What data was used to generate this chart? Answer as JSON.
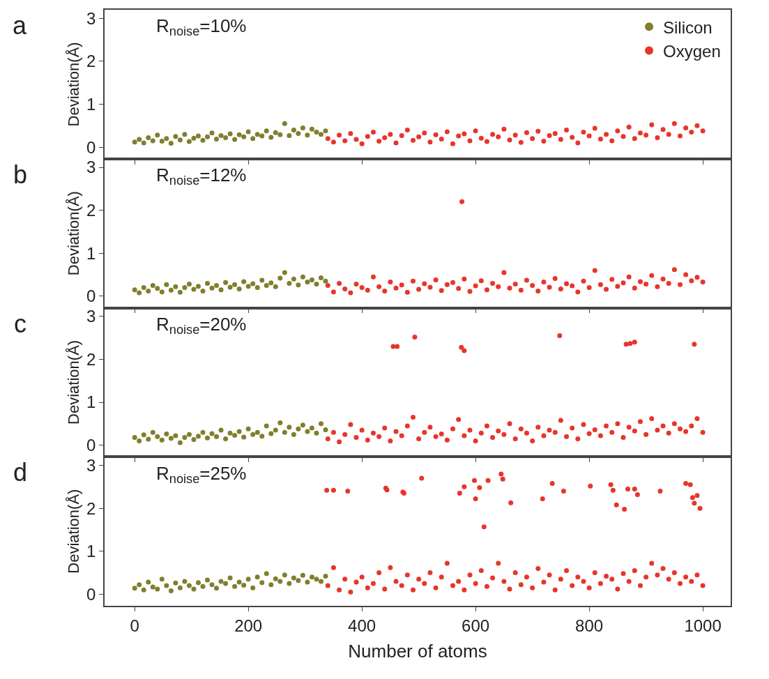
{
  "chart_data": [
    {
      "type": "scatter",
      "annotations": [
        "a",
        "R$_{noise}$=10%"
      ],
      "ylabel": "Deviation(Å)",
      "xlim": [
        -53,
        1049
      ],
      "xticks": [
        0,
        200,
        400,
        600,
        800,
        1000
      ],
      "ylim": [
        -0.27,
        3.2
      ],
      "yticks": [
        0,
        1,
        2,
        3
      ],
      "tick_labels": "y",
      "grid": false,
      "legend": "top right",
      "marker": "circle",
      "series": [
        {
          "name": "Silicon",
          "color": "#7f7f2e",
          "x": [
            0,
            8,
            16,
            24,
            32,
            40,
            48,
            56,
            64,
            72,
            80,
            88,
            96,
            104,
            112,
            120,
            128,
            136,
            144,
            152,
            160,
            168,
            176,
            184,
            192,
            200,
            208,
            216,
            224,
            232,
            240,
            248,
            256,
            264,
            272,
            280,
            288,
            296,
            304,
            312,
            320,
            328,
            336
          ],
          "values": [
            0.12,
            0.18,
            0.1,
            0.22,
            0.15,
            0.28,
            0.14,
            0.2,
            0.09,
            0.25,
            0.17,
            0.3,
            0.13,
            0.21,
            0.26,
            0.16,
            0.24,
            0.33,
            0.19,
            0.27,
            0.22,
            0.31,
            0.18,
            0.29,
            0.24,
            0.36,
            0.2,
            0.3,
            0.26,
            0.38,
            0.23,
            0.34,
            0.29,
            0.55,
            0.27,
            0.4,
            0.32,
            0.45,
            0.28,
            0.42,
            0.35,
            0.3,
            0.38
          ]
        },
        {
          "name": "Oxygen",
          "color": "#e8352b",
          "x": [
            340,
            350,
            360,
            370,
            380,
            390,
            400,
            410,
            420,
            430,
            440,
            450,
            460,
            470,
            480,
            490,
            500,
            510,
            520,
            530,
            540,
            550,
            560,
            570,
            580,
            590,
            600,
            610,
            620,
            630,
            640,
            650,
            660,
            670,
            680,
            690,
            700,
            710,
            720,
            730,
            740,
            750,
            760,
            770,
            780,
            790,
            800,
            810,
            820,
            830,
            840,
            850,
            860,
            870,
            880,
            890,
            900,
            910,
            920,
            930,
            940,
            950,
            960,
            970,
            980,
            990,
            1000
          ],
          "values": [
            0.2,
            0.12,
            0.28,
            0.15,
            0.32,
            0.18,
            0.08,
            0.25,
            0.35,
            0.14,
            0.22,
            0.3,
            0.1,
            0.27,
            0.4,
            0.16,
            0.24,
            0.33,
            0.12,
            0.29,
            0.19,
            0.36,
            0.08,
            0.26,
            0.31,
            0.15,
            0.38,
            0.21,
            0.13,
            0.3,
            0.24,
            0.42,
            0.17,
            0.28,
            0.11,
            0.34,
            0.2,
            0.37,
            0.14,
            0.27,
            0.32,
            0.18,
            0.4,
            0.23,
            0.1,
            0.35,
            0.26,
            0.44,
            0.19,
            0.3,
            0.15,
            0.38,
            0.25,
            0.47,
            0.2,
            0.33,
            0.28,
            0.52,
            0.22,
            0.41,
            0.3,
            0.55,
            0.26,
            0.45,
            0.35,
            0.5,
            0.38
          ]
        }
      ]
    },
    {
      "type": "scatter",
      "annotations": [
        "b",
        "R$_{noise}$=12%"
      ],
      "ylabel": "Deviation(Å)",
      "xlim": [
        -53,
        1049
      ],
      "xticks": [
        0,
        200,
        400,
        600,
        800,
        1000
      ],
      "ylim": [
        -0.27,
        3.2
      ],
      "yticks": [
        0,
        1,
        2,
        3
      ],
      "tick_labels": "y",
      "grid": false,
      "marker": "circle",
      "series": [
        {
          "color": "#7f7f2e",
          "x": [
            0,
            8,
            16,
            24,
            32,
            40,
            48,
            56,
            64,
            72,
            80,
            88,
            96,
            104,
            112,
            120,
            128,
            136,
            144,
            152,
            160,
            168,
            176,
            184,
            192,
            200,
            208,
            216,
            224,
            232,
            240,
            248,
            256,
            264,
            272,
            280,
            288,
            296,
            304,
            312,
            320,
            328,
            336
          ],
          "values": [
            0.15,
            0.08,
            0.2,
            0.12,
            0.25,
            0.18,
            0.1,
            0.27,
            0.14,
            0.22,
            0.09,
            0.2,
            0.28,
            0.16,
            0.23,
            0.12,
            0.3,
            0.19,
            0.25,
            0.15,
            0.32,
            0.21,
            0.27,
            0.17,
            0.34,
            0.23,
            0.29,
            0.2,
            0.37,
            0.25,
            0.31,
            0.22,
            0.42,
            0.55,
            0.3,
            0.4,
            0.26,
            0.45,
            0.33,
            0.38,
            0.28,
            0.43,
            0.35
          ]
        },
        {
          "color": "#e8352b",
          "x": [
            340,
            350,
            360,
            370,
            380,
            390,
            400,
            410,
            420,
            430,
            440,
            450,
            460,
            470,
            480,
            490,
            500,
            510,
            520,
            530,
            540,
            550,
            560,
            570,
            580,
            590,
            600,
            610,
            620,
            630,
            640,
            650,
            660,
            670,
            680,
            690,
            700,
            710,
            720,
            730,
            740,
            750,
            760,
            770,
            780,
            790,
            800,
            810,
            820,
            830,
            840,
            850,
            860,
            870,
            880,
            890,
            900,
            910,
            920,
            930,
            940,
            950,
            960,
            970,
            980,
            990,
            1000,
            576
          ],
          "values": [
            0.25,
            0.1,
            0.3,
            0.17,
            0.08,
            0.28,
            0.2,
            0.14,
            0.45,
            0.22,
            0.12,
            0.33,
            0.19,
            0.26,
            0.09,
            0.35,
            0.16,
            0.29,
            0.21,
            0.38,
            0.13,
            0.27,
            0.32,
            0.18,
            0.4,
            0.11,
            0.24,
            0.36,
            0.15,
            0.3,
            0.22,
            0.55,
            0.19,
            0.28,
            0.14,
            0.37,
            0.25,
            0.12,
            0.33,
            0.21,
            0.41,
            0.17,
            0.29,
            0.24,
            0.1,
            0.35,
            0.2,
            0.6,
            0.27,
            0.16,
            0.39,
            0.23,
            0.31,
            0.45,
            0.19,
            0.34,
            0.28,
            0.48,
            0.22,
            0.4,
            0.3,
            0.62,
            0.27,
            0.5,
            0.36,
            0.44,
            0.33,
            2.2
          ]
        }
      ]
    },
    {
      "type": "scatter",
      "annotations": [
        "c",
        "R$_{noise}$=20%"
      ],
      "ylabel": "Deviation(Å)",
      "xlim": [
        -53,
        1049
      ],
      "xticks": [
        0,
        200,
        400,
        600,
        800,
        1000
      ],
      "ylim": [
        -0.27,
        3.2
      ],
      "yticks": [
        0,
        1,
        2,
        3
      ],
      "tick_labels": "y",
      "grid": false,
      "marker": "circle",
      "series": [
        {
          "color": "#7f7f2e",
          "x": [
            0,
            8,
            16,
            24,
            32,
            40,
            48,
            56,
            64,
            72,
            80,
            88,
            96,
            104,
            112,
            120,
            128,
            136,
            144,
            152,
            160,
            168,
            176,
            184,
            192,
            200,
            208,
            216,
            224,
            232,
            240,
            248,
            256,
            264,
            272,
            280,
            288,
            296,
            304,
            312,
            320,
            328,
            336
          ],
          "values": [
            0.18,
            0.1,
            0.24,
            0.14,
            0.3,
            0.2,
            0.12,
            0.26,
            0.16,
            0.22,
            0.06,
            0.18,
            0.25,
            0.13,
            0.21,
            0.3,
            0.17,
            0.27,
            0.2,
            0.35,
            0.15,
            0.28,
            0.23,
            0.32,
            0.19,
            0.38,
            0.25,
            0.3,
            0.21,
            0.45,
            0.27,
            0.35,
            0.52,
            0.3,
            0.42,
            0.25,
            0.38,
            0.47,
            0.32,
            0.4,
            0.28,
            0.5,
            0.36
          ]
        },
        {
          "color": "#e8352b",
          "x": [
            340,
            350,
            360,
            370,
            380,
            390,
            400,
            410,
            420,
            430,
            440,
            450,
            460,
            470,
            480,
            490,
            500,
            510,
            520,
            530,
            540,
            550,
            560,
            570,
            580,
            590,
            600,
            610,
            620,
            630,
            640,
            650,
            660,
            670,
            680,
            690,
            700,
            710,
            720,
            730,
            740,
            750,
            760,
            770,
            780,
            790,
            800,
            810,
            820,
            830,
            840,
            850,
            860,
            870,
            880,
            890,
            900,
            910,
            920,
            930,
            940,
            950,
            960,
            970,
            980,
            990,
            1000,
            455,
            462,
            493,
            575,
            580,
            748,
            865,
            872,
            880,
            985
          ],
          "values": [
            0.15,
            0.3,
            0.08,
            0.25,
            0.48,
            0.18,
            0.35,
            0.12,
            0.28,
            0.2,
            0.4,
            0.1,
            0.32,
            0.22,
            0.45,
            0.65,
            0.15,
            0.3,
            0.42,
            0.2,
            0.26,
            0.12,
            0.38,
            0.6,
            0.22,
            0.35,
            0.1,
            0.28,
            0.45,
            0.18,
            0.33,
            0.25,
            0.5,
            0.15,
            0.38,
            0.28,
            0.1,
            0.42,
            0.22,
            0.35,
            0.3,
            0.58,
            0.2,
            0.4,
            0.15,
            0.48,
            0.27,
            0.36,
            0.22,
            0.45,
            0.3,
            0.5,
            0.18,
            0.42,
            0.33,
            0.55,
            0.25,
            0.62,
            0.35,
            0.45,
            0.28,
            0.5,
            0.38,
            0.32,
            0.45,
            0.62,
            0.3,
            2.3,
            2.3,
            2.52,
            2.28,
            2.2,
            2.55,
            2.35,
            2.37,
            2.4,
            2.35
          ]
        }
      ]
    },
    {
      "type": "scatter",
      "annotations": [
        "d",
        "R$_{noise}$=25%"
      ],
      "ylabel": "Deviation(Å)",
      "xlabel": "Number of atoms",
      "xlim": [
        -53,
        1049
      ],
      "xticks": [
        0,
        200,
        400,
        600,
        800,
        1000
      ],
      "ylim": [
        -0.27,
        3.2
      ],
      "yticks": [
        0,
        1,
        2,
        3
      ],
      "grid": false,
      "marker": "circle",
      "series": [
        {
          "color": "#7f7f2e",
          "x": [
            0,
            8,
            16,
            24,
            32,
            40,
            48,
            56,
            64,
            72,
            80,
            88,
            96,
            104,
            112,
            120,
            128,
            136,
            144,
            152,
            160,
            168,
            176,
            184,
            192,
            200,
            208,
            216,
            224,
            232,
            240,
            248,
            256,
            264,
            272,
            280,
            288,
            296,
            304,
            312,
            320,
            328,
            336
          ],
          "values": [
            0.14,
            0.22,
            0.1,
            0.28,
            0.17,
            0.12,
            0.35,
            0.2,
            0.08,
            0.26,
            0.15,
            0.3,
            0.2,
            0.12,
            0.27,
            0.18,
            0.33,
            0.22,
            0.14,
            0.3,
            0.25,
            0.38,
            0.18,
            0.28,
            0.21,
            0.35,
            0.15,
            0.4,
            0.27,
            0.48,
            0.22,
            0.36,
            0.3,
            0.45,
            0.25,
            0.38,
            0.32,
            0.44,
            0.28,
            0.4,
            0.35,
            0.3,
            0.42
          ]
        },
        {
          "color": "#e8352b",
          "x": [
            340,
            350,
            360,
            370,
            380,
            390,
            400,
            410,
            420,
            430,
            440,
            450,
            460,
            470,
            480,
            490,
            500,
            510,
            520,
            530,
            540,
            550,
            560,
            570,
            580,
            590,
            600,
            610,
            620,
            630,
            640,
            650,
            660,
            670,
            680,
            690,
            700,
            710,
            720,
            730,
            740,
            750,
            760,
            770,
            780,
            790,
            800,
            810,
            820,
            830,
            840,
            850,
            860,
            870,
            880,
            890,
            900,
            910,
            920,
            930,
            940,
            950,
            960,
            970,
            980,
            990,
            1000,
            338,
            350,
            375,
            442,
            444,
            472,
            474,
            505,
            572,
            580,
            598,
            600,
            607,
            615,
            622,
            645,
            648,
            662,
            718,
            735,
            755,
            802,
            838,
            842,
            848,
            862,
            868,
            880,
            885,
            925,
            970,
            978,
            982,
            985,
            990,
            995
          ],
          "values": [
            0.2,
            0.62,
            0.1,
            0.35,
            0.05,
            0.28,
            0.4,
            0.15,
            0.25,
            0.5,
            0.12,
            0.62,
            0.3,
            0.2,
            0.45,
            0.1,
            0.35,
            0.25,
            0.5,
            0.15,
            0.4,
            0.72,
            0.2,
            0.3,
            0.1,
            0.45,
            0.25,
            0.55,
            0.18,
            0.38,
            0.72,
            0.3,
            0.12,
            0.5,
            0.22,
            0.4,
            0.15,
            0.6,
            0.28,
            0.45,
            0.1,
            0.35,
            0.55,
            0.2,
            0.4,
            0.3,
            0.15,
            0.5,
            0.25,
            0.42,
            0.35,
            0.12,
            0.48,
            0.3,
            0.55,
            0.2,
            0.4,
            0.72,
            0.45,
            0.6,
            0.35,
            0.5,
            0.25,
            0.4,
            0.3,
            0.45,
            0.2,
            2.42,
            2.42,
            2.4,
            2.47,
            2.43,
            2.38,
            2.35,
            2.7,
            2.35,
            2.5,
            2.65,
            2.22,
            2.48,
            1.57,
            2.65,
            2.8,
            2.68,
            2.13,
            2.22,
            2.58,
            2.4,
            2.52,
            2.55,
            2.42,
            2.08,
            1.98,
            2.45,
            2.45,
            2.32,
            2.4,
            2.58,
            2.55,
            2.25,
            2.12,
            2.3,
            2.0
          ]
        }
      ]
    }
  ]
}
